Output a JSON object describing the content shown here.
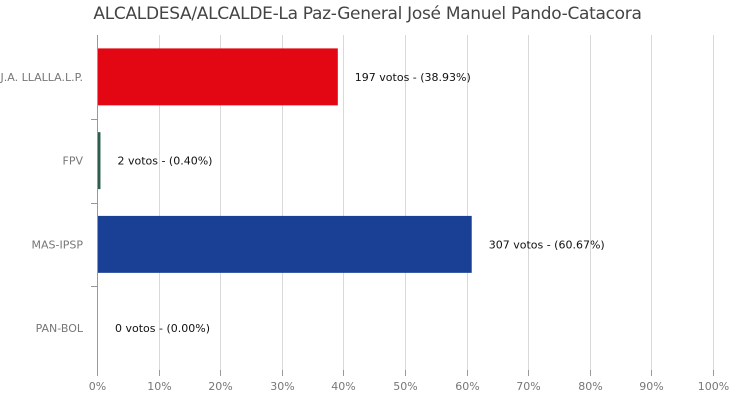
{
  "chart_data": {
    "type": "bar",
    "orientation": "horizontal",
    "title": "ALCALDESA/ALCALDE-La Paz-General José Manuel Pando-Catacora",
    "categories": [
      "J.A. LLALLA.L.P.",
      "FPV",
      "MAS-IPSP",
      "PAN-BOL"
    ],
    "values": [
      38.93,
      0.4,
      60.67,
      0.0
    ],
    "votes": [
      197,
      2,
      307,
      0
    ],
    "data_labels": [
      "197 votos - (38.93%)",
      "2 votos - (0.40%)",
      "307 votos - (60.67%)",
      "0 votos - (0.00%)"
    ],
    "colors": [
      "#e30613",
      "#2e5e4e",
      "#1a4096",
      "#888888"
    ],
    "xlim": [
      0,
      100
    ],
    "xticks": [
      "0%",
      "10%",
      "20%",
      "30%",
      "40%",
      "50%",
      "60%",
      "70%",
      "80%",
      "90%",
      "100%"
    ],
    "grid": true,
    "xlabel": "",
    "ylabel": ""
  }
}
